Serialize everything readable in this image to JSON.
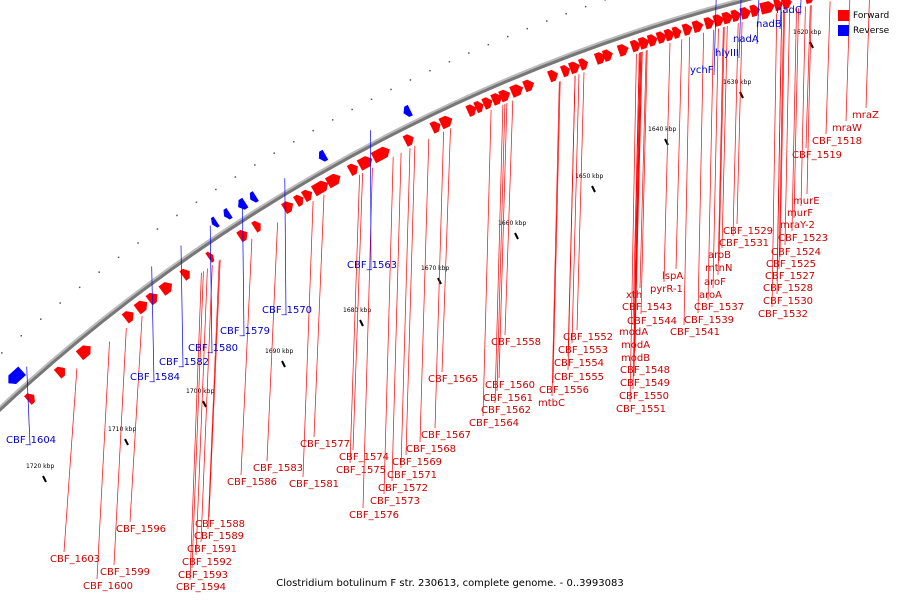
{
  "caption": "Clostridium botulinum F str. 230613, complete genome. - 0..3993083",
  "legend": {
    "forward_label": "Forward",
    "reverse_label": "Reverse",
    "forward_color": "#ff0000",
    "reverse_color": "#0000ff"
  },
  "colors": {
    "forward": "#ff0000",
    "reverse": "#0000ff",
    "backbone": "#777777",
    "tick": "#000000",
    "label_fwd": "#cc0000",
    "label_rev": "#0000cc"
  },
  "ticks": [
    "1620 kbp",
    "1630 kbp",
    "1640 kbp",
    "1650 kbp",
    "1660 kbp",
    "1670 kbp",
    "1680 kbp",
    "1690 kbp",
    "1700 kbp",
    "1710 kbp",
    "1720 kbp"
  ],
  "forward_labels": [
    "mraZ",
    "mraW",
    "CBF_1518",
    "CBF_1519",
    "murE",
    "murF",
    "mraY-2",
    "CBF_1523",
    "CBF_1524",
    "CBF_1525",
    "CBF_1527",
    "CBF_1528",
    "CBF_1529",
    "CBF_1531",
    "aroB",
    "mtnN",
    "aroF",
    "aroA",
    "CBF_1530",
    "CBF_1532",
    "lspA",
    "pyrR-1",
    "CBF_1537",
    "CBF_1539",
    "CBF_1541",
    "xth",
    "CBF_1543",
    "CBF_1544",
    "modA",
    "modA",
    "modB",
    "CBF_1548",
    "CBF_1549",
    "CBF_1550",
    "CBF_1551",
    "CBF_1552",
    "CBF_1553",
    "CBF_1554",
    "CBF_1555",
    "CBF_1556",
    "CBF_1558",
    "CBF_1560",
    "CBF_1561",
    "mtbC",
    "CBF_1562",
    "CBF_1564",
    "CBF_1565",
    "CBF_1567",
    "CBF_1568",
    "CBF_1569",
    "CBF_1571",
    "CBF_1572",
    "CBF_1573",
    "CBF_1574",
    "CBF_1575",
    "CBF_1576",
    "CBF_1577",
    "CBF_1581",
    "CBF_1583",
    "CBF_1586",
    "CBF_1588",
    "CBF_1589",
    "CBF_1591",
    "CBF_1592",
    "CBF_1593",
    "CBF_1594",
    "CBF_1596",
    "CBF_1599",
    "CBF_1600",
    "CBF_1603"
  ],
  "reverse_labels": [
    "nadC",
    "nadB",
    "nadA",
    "hlyIII",
    "ychF",
    "CBF_1563",
    "CBF_1570",
    "CBF_1579",
    "CBF_1580",
    "CBF_1582",
    "CBF_1584",
    "CBF_1604"
  ]
}
